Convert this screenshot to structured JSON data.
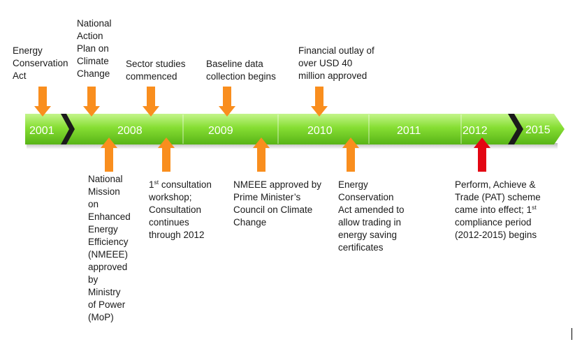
{
  "years": [
    "2001",
    "2008",
    "2009",
    "2010",
    "2011",
    "2012",
    "2015"
  ],
  "colors": {
    "band_light": "#b6f07a",
    "band_mid": "#7fdc2e",
    "band_dark": "#4ea812",
    "orange_arrow": "#f98e1e",
    "red_arrow": "#e30613",
    "separator": "#1b1b1b"
  },
  "events_above": [
    {
      "id": "eca",
      "lines": [
        "Energy",
        "Conservation",
        "Act"
      ]
    },
    {
      "id": "napcc",
      "lines": [
        "National",
        "Action",
        "Plan on",
        "Climate",
        "Change"
      ]
    },
    {
      "id": "sector",
      "lines": [
        "Sector studies",
        "commenced"
      ]
    },
    {
      "id": "baseline",
      "lines": [
        "Baseline data",
        "collection begins"
      ]
    },
    {
      "id": "financial",
      "lines": [
        "Financial outlay of",
        "over USD 40",
        "million approved"
      ]
    }
  ],
  "events_below": [
    {
      "id": "nmeee-mop",
      "lines": [
        "National",
        "Mission",
        "on",
        "Enhanced",
        "Energy",
        "Efficiency",
        "(NMEEE)",
        "approved",
        "by",
        "Ministry",
        "of Power",
        "(MoP)"
      ]
    },
    {
      "id": "consultation",
      "first_num": "1",
      "first_sup": "st",
      "first_rest": " consultation",
      "lines": [
        "workshop;",
        "Consultation",
        "continues",
        "through 2012"
      ]
    },
    {
      "id": "nmeee-pm",
      "lines": [
        "NMEEE approved by",
        "Prime Minister’s",
        "Council on Climate",
        "Change"
      ]
    },
    {
      "id": "eca-amended",
      "lines": [
        "Energy",
        "Conservation",
        "Act amended to",
        "allow trading in",
        "energy saving",
        "certificates"
      ]
    },
    {
      "id": "pat",
      "lines": [
        "Perform, Achieve &",
        "Trade (PAT) scheme"
      ],
      "line3_pre": "came into effect; 1",
      "line3_sup": "st",
      "lines_after": [
        "compliance period",
        "(2012-2015) begins"
      ]
    }
  ]
}
